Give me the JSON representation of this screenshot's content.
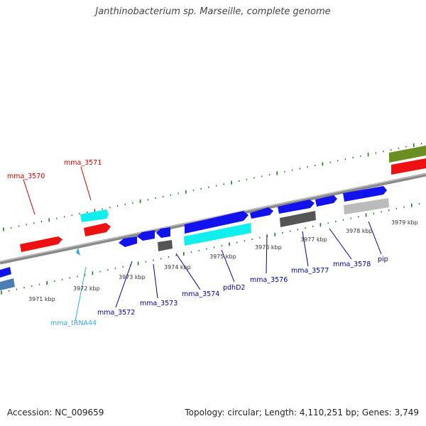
{
  "title": "Janthinobacterium sp. Marseille, complete genome",
  "footer": {
    "accession": "Accession: NC_009659",
    "genome_info": "Topology: circular; Length: 4,110,251 bp; Genes: 3,749"
  },
  "colors": {
    "backbone": "#8a8a8a",
    "tick": "#1f7a1f",
    "top_label": "#cc0000",
    "bottom_label": "#000099",
    "trna_label": "#33aadd",
    "cds_blue": "#1212ee",
    "rrna_red": "#ee1111",
    "cyan": "#11eeee",
    "dark_gray": "#555555",
    "light_gray": "#bbbbbb",
    "olive": "#6b8e23",
    "steel": "#4a7fb5"
  },
  "kbp_labels": [
    "3971 kbp",
    "3972 kbp",
    "3973 kbp",
    "3974 kbp",
    "3975 kbp",
    "3976 kbp",
    "3977 kbp",
    "3978 kbp",
    "3979 kbp"
  ],
  "gene_labels_top": [
    "mma_3570",
    "mma_3571"
  ],
  "gene_labels_bottom": [
    "mma_tRNA44",
    "mma_3572",
    "mma_3573",
    "mma_3574",
    "pdhD2",
    "mma_3576",
    "mma_3577",
    "mma_3578",
    "pip"
  ]
}
